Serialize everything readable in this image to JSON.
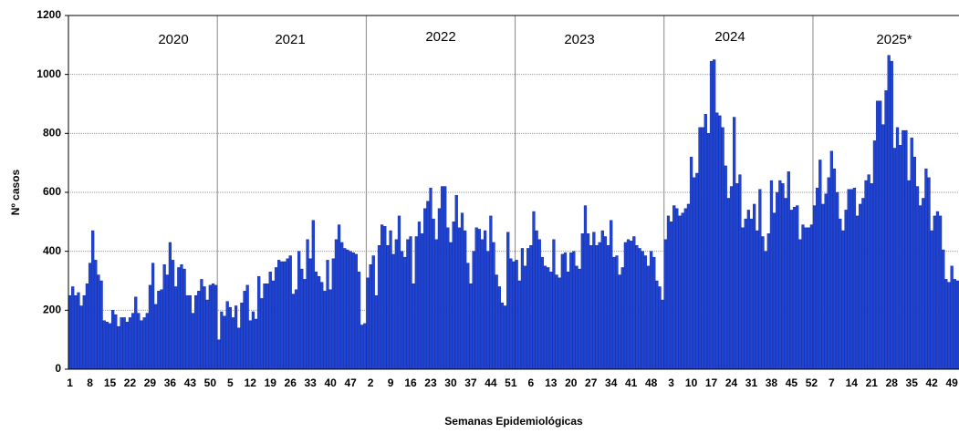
{
  "chart_data": {
    "type": "bar",
    "y_label": "Nº casos",
    "x_label": "Semanas Epidemiológicas",
    "annotations": [
      "2020",
      "2021",
      "2022",
      "2023",
      "2024",
      "2025*"
    ],
    "color": "#1f45d8",
    "grid": true,
    "ylim": [
      0,
      1200
    ],
    "yticks": [
      0,
      200,
      400,
      600,
      800,
      1000,
      1200
    ],
    "categories": [
      "1",
      null,
      null,
      null,
      null,
      null,
      null,
      "8",
      null,
      null,
      null,
      null,
      null,
      null,
      "15",
      null,
      null,
      null,
      null,
      null,
      null,
      "22",
      null,
      null,
      null,
      null,
      null,
      null,
      "29",
      null,
      null,
      null,
      null,
      null,
      null,
      "36",
      null,
      null,
      null,
      null,
      null,
      null,
      "43",
      null,
      null,
      null,
      null,
      null,
      null,
      "50",
      null,
      null,
      null,
      null,
      null,
      null,
      "5",
      null,
      null,
      null,
      null,
      null,
      null,
      "12",
      null,
      null,
      null,
      null,
      null,
      null,
      "19",
      null,
      null,
      null,
      null,
      null,
      null,
      "26",
      null,
      null,
      null,
      null,
      null,
      null,
      "33",
      null,
      null,
      null,
      null,
      null,
      null,
      "40",
      null,
      null,
      null,
      null,
      null,
      null,
      "47",
      null,
      null,
      null,
      null,
      null,
      null,
      "2",
      null,
      null,
      null,
      null,
      null,
      null,
      "9",
      null,
      null,
      null,
      null,
      null,
      null,
      "16",
      null,
      null,
      null,
      null,
      null,
      null,
      "23",
      null,
      null,
      null,
      null,
      null,
      null,
      "30",
      null,
      null,
      null,
      null,
      null,
      null,
      "37",
      null,
      null,
      null,
      null,
      null,
      null,
      "44",
      null,
      null,
      null,
      null,
      null,
      null,
      "51",
      null,
      null,
      null,
      null,
      null,
      null,
      "6",
      null,
      null,
      null,
      null,
      null,
      null,
      "13",
      null,
      null,
      null,
      null,
      null,
      null,
      "20",
      null,
      null,
      null,
      null,
      null,
      null,
      "27",
      null,
      null,
      null,
      null,
      null,
      null,
      "34",
      null,
      null,
      null,
      null,
      null,
      null,
      "41",
      null,
      null,
      null,
      null,
      null,
      null,
      "48",
      null,
      null,
      null,
      null,
      null,
      null,
      "3",
      null,
      null,
      null,
      null,
      null,
      null,
      "10",
      null,
      null,
      null,
      null,
      null,
      null,
      "17",
      null,
      null,
      null,
      null,
      null,
      null,
      "24",
      null,
      null,
      null,
      null,
      null,
      null,
      "31",
      null,
      null,
      null,
      null,
      null,
      null,
      "38",
      null,
      null,
      null,
      null,
      null,
      null,
      "45",
      null,
      null,
      null,
      null,
      null,
      null,
      "52",
      null,
      null,
      null,
      null,
      null,
      null,
      "7",
      null,
      null,
      null,
      null,
      null,
      null,
      "14",
      null,
      null,
      null,
      null,
      null,
      null,
      "21",
      null,
      null,
      null,
      null,
      null,
      null,
      "28",
      null,
      null,
      null,
      null,
      null,
      null,
      "35",
      null,
      null,
      null,
      null,
      null,
      null,
      "42",
      null,
      null,
      null,
      null,
      null,
      null,
      "49",
      null,
      null
    ],
    "values": [
      250,
      280,
      250,
      260,
      215,
      250,
      290,
      360,
      470,
      370,
      320,
      300,
      165,
      160,
      155,
      200,
      185,
      145,
      175,
      175,
      160,
      175,
      190,
      245,
      190,
      165,
      175,
      190,
      285,
      360,
      220,
      265,
      270,
      355,
      320,
      430,
      370,
      280,
      345,
      355,
      340,
      250,
      250,
      190,
      250,
      265,
      305,
      280,
      235,
      285,
      290,
      285,
      100,
      195,
      180,
      230,
      210,
      175,
      215,
      140,
      225,
      265,
      285,
      165,
      195,
      170,
      315,
      240,
      290,
      290,
      330,
      300,
      345,
      370,
      365,
      365,
      375,
      385,
      255,
      270,
      400,
      340,
      305,
      440,
      375,
      505,
      330,
      315,
      295,
      265,
      370,
      270,
      375,
      440,
      490,
      430,
      410,
      405,
      400,
      395,
      390,
      330,
      150,
      155,
      310,
      355,
      385,
      250,
      420,
      490,
      485,
      420,
      470,
      390,
      440,
      520,
      400,
      380,
      440,
      450,
      290,
      450,
      500,
      460,
      545,
      570,
      615,
      510,
      440,
      545,
      620,
      620,
      480,
      430,
      500,
      590,
      480,
      530,
      470,
      360,
      290,
      400,
      480,
      475,
      440,
      470,
      400,
      520,
      430,
      320,
      280,
      225,
      215,
      465,
      375,
      365,
      370,
      300,
      410,
      350,
      410,
      420,
      535,
      470,
      440,
      380,
      350,
      345,
      330,
      440,
      320,
      310,
      390,
      395,
      330,
      395,
      400,
      350,
      340,
      460,
      555,
      460,
      420,
      465,
      420,
      430,
      470,
      450,
      420,
      505,
      380,
      385,
      320,
      345,
      430,
      440,
      435,
      450,
      420,
      410,
      400,
      385,
      350,
      400,
      380,
      300,
      280,
      235,
      440,
      520,
      500,
      555,
      545,
      520,
      530,
      545,
      560,
      720,
      650,
      665,
      820,
      820,
      865,
      800,
      1045,
      1050,
      870,
      860,
      820,
      690,
      580,
      620,
      855,
      630,
      660,
      480,
      510,
      540,
      510,
      560,
      470,
      610,
      450,
      400,
      460,
      640,
      530,
      600,
      640,
      630,
      580,
      670,
      540,
      550,
      555,
      440,
      490,
      480,
      480,
      490,
      555,
      615,
      710,
      560,
      595,
      650,
      740,
      680,
      600,
      510,
      470,
      540,
      610,
      610,
      615,
      520,
      560,
      580,
      640,
      660,
      630,
      775,
      910,
      910,
      830,
      945,
      1065,
      1045,
      750,
      820,
      760,
      810,
      810,
      640,
      785,
      720,
      620,
      555,
      580,
      680,
      650,
      470,
      520,
      535,
      520,
      405,
      305,
      295,
      350,
      305,
      300
    ]
  }
}
